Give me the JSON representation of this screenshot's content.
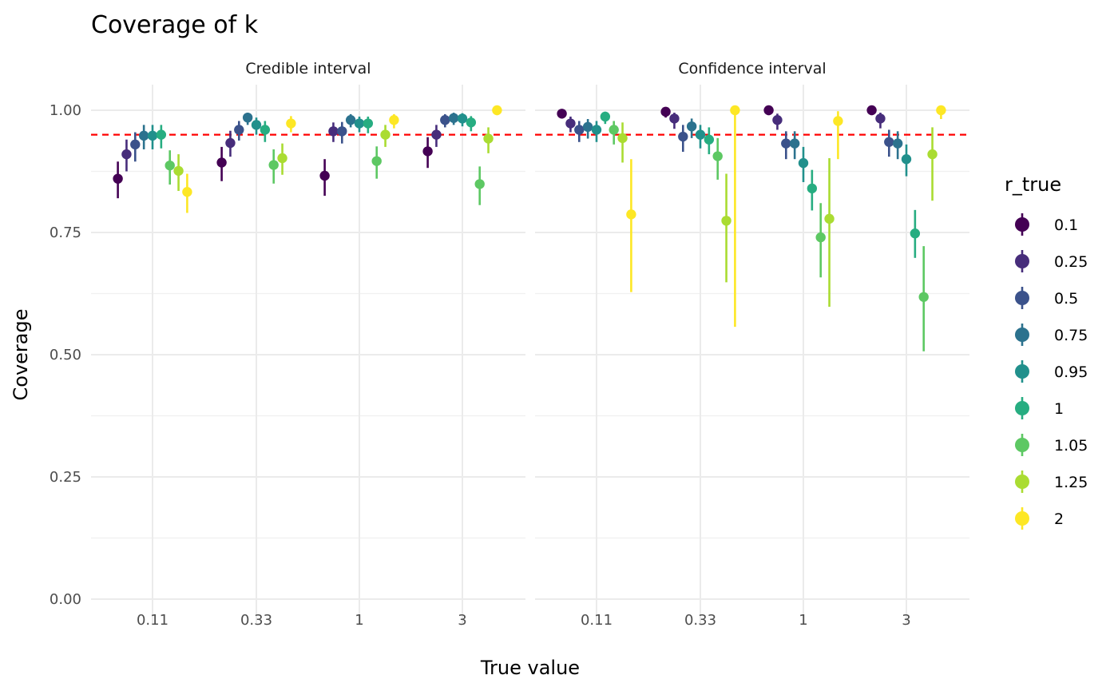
{
  "chart_data": {
    "type": "scatter",
    "title": "Coverage of k",
    "xlabel": "True value",
    "ylabel": "Coverage",
    "ylim": [
      0,
      1.05
    ],
    "yticks": [
      "0.00",
      "0.25",
      "0.50",
      "0.75",
      "1.00"
    ],
    "ytick_values": [
      0,
      0.25,
      0.5,
      0.75,
      1.0
    ],
    "x_categories": [
      "0.11",
      "0.33",
      "1",
      "3"
    ],
    "reference_line": {
      "y": 0.95,
      "color": "#ff0000",
      "style": "dashed"
    },
    "grid": true,
    "legend": {
      "title": "r_true",
      "position": "right"
    },
    "series_names": [
      "0.1",
      "0.25",
      "0.5",
      "0.75",
      "0.95",
      "1",
      "1.05",
      "1.25",
      "2"
    ],
    "series_colors": [
      "#440154",
      "#472D7B",
      "#3B528B",
      "#2C728E",
      "#21908C",
      "#27AD81",
      "#5DC863",
      "#AADC32",
      "#FDE725"
    ],
    "panels": [
      {
        "label": "Credible interval",
        "groups": [
          {
            "x": "0.11",
            "points": [
              [
                0.86,
                0.82,
                0.895
              ],
              [
                0.91,
                0.875,
                0.94
              ],
              [
                0.93,
                0.895,
                0.955
              ],
              [
                0.948,
                0.92,
                0.97
              ],
              [
                0.948,
                0.92,
                0.97
              ],
              [
                0.95,
                0.922,
                0.97
              ],
              [
                0.887,
                0.848,
                0.918
              ],
              [
                0.876,
                0.835,
                0.91
              ],
              [
                0.833,
                0.79,
                0.87
              ]
            ]
          },
          {
            "x": "0.33",
            "points": [
              [
                0.893,
                0.855,
                0.925
              ],
              [
                0.933,
                0.905,
                0.958
              ],
              [
                0.96,
                0.938,
                0.978
              ],
              [
                0.985,
                0.97,
                0.995
              ],
              [
                0.97,
                0.95,
                0.985
              ],
              [
                0.96,
                0.935,
                0.978
              ],
              [
                0.888,
                0.85,
                0.92
              ],
              [
                0.902,
                0.868,
                0.932
              ],
              [
                0.973,
                0.955,
                0.988
              ]
            ]
          },
          {
            "x": "1",
            "points": [
              [
                0.866,
                0.825,
                0.9
              ],
              [
                0.957,
                0.935,
                0.975
              ],
              [
                0.957,
                0.932,
                0.976
              ],
              [
                0.98,
                0.965,
                0.992
              ],
              [
                0.973,
                0.955,
                0.987
              ],
              [
                0.973,
                0.953,
                0.987
              ],
              [
                0.896,
                0.86,
                0.926
              ],
              [
                0.95,
                0.925,
                0.97
              ],
              [
                0.98,
                0.963,
                0.992
              ]
            ]
          },
          {
            "x": "3",
            "points": [
              [
                0.916,
                0.882,
                0.945
              ],
              [
                0.95,
                0.925,
                0.97
              ],
              [
                0.98,
                0.965,
                0.992
              ],
              [
                0.984,
                0.97,
                0.995
              ],
              [
                0.983,
                0.967,
                0.994
              ],
              [
                0.975,
                0.957,
                0.988
              ],
              [
                0.849,
                0.806,
                0.885
              ],
              [
                0.942,
                0.912,
                0.965
              ],
              [
                1.0,
                0.99,
                1.0
              ]
            ]
          }
        ]
      },
      {
        "label": "Confidence interval",
        "groups": [
          {
            "x": "0.11",
            "points": [
              [
                0.993,
                0.983,
                1.0
              ],
              [
                0.973,
                0.955,
                0.987
              ],
              [
                0.96,
                0.935,
                0.978
              ],
              [
                0.966,
                0.942,
                0.982
              ],
              [
                0.96,
                0.935,
                0.978
              ],
              [
                0.987,
                0.972,
                0.997
              ],
              [
                0.96,
                0.93,
                0.978
              ],
              [
                0.943,
                0.893,
                0.975
              ],
              [
                0.787,
                0.628,
                0.9
              ]
            ]
          },
          {
            "x": "0.33",
            "points": [
              [
                0.997,
                0.985,
                1.0
              ],
              [
                0.983,
                0.962,
                0.995
              ],
              [
                0.946,
                0.915,
                0.97
              ],
              [
                0.967,
                0.943,
                0.983
              ],
              [
                0.95,
                0.922,
                0.97
              ],
              [
                0.94,
                0.91,
                0.965
              ],
              [
                0.906,
                0.858,
                0.943
              ],
              [
                0.774,
                0.648,
                0.87
              ],
              [
                1.0,
                0.557,
                1.0
              ]
            ]
          },
          {
            "x": "1",
            "points": [
              [
                1.0,
                0.99,
                1.0
              ],
              [
                0.98,
                0.96,
                0.993
              ],
              [
                0.932,
                0.9,
                0.957
              ],
              [
                0.932,
                0.9,
                0.957
              ],
              [
                0.892,
                0.853,
                0.925
              ],
              [
                0.84,
                0.795,
                0.878
              ],
              [
                0.74,
                0.658,
                0.81
              ],
              [
                0.778,
                0.598,
                0.902
              ],
              [
                0.978,
                0.9,
                0.998
              ]
            ]
          },
          {
            "x": "3",
            "points": [
              [
                1.0,
                0.99,
                1.0
              ],
              [
                0.983,
                0.963,
                0.995
              ],
              [
                0.935,
                0.905,
                0.96
              ],
              [
                0.932,
                0.9,
                0.957
              ],
              [
                0.9,
                0.865,
                0.93
              ],
              [
                0.748,
                0.698,
                0.796
              ],
              [
                0.618,
                0.507,
                0.722
              ],
              [
                0.91,
                0.815,
                0.965
              ],
              [
                1.0,
                0.982,
                1.0
              ]
            ]
          }
        ]
      }
    ]
  }
}
